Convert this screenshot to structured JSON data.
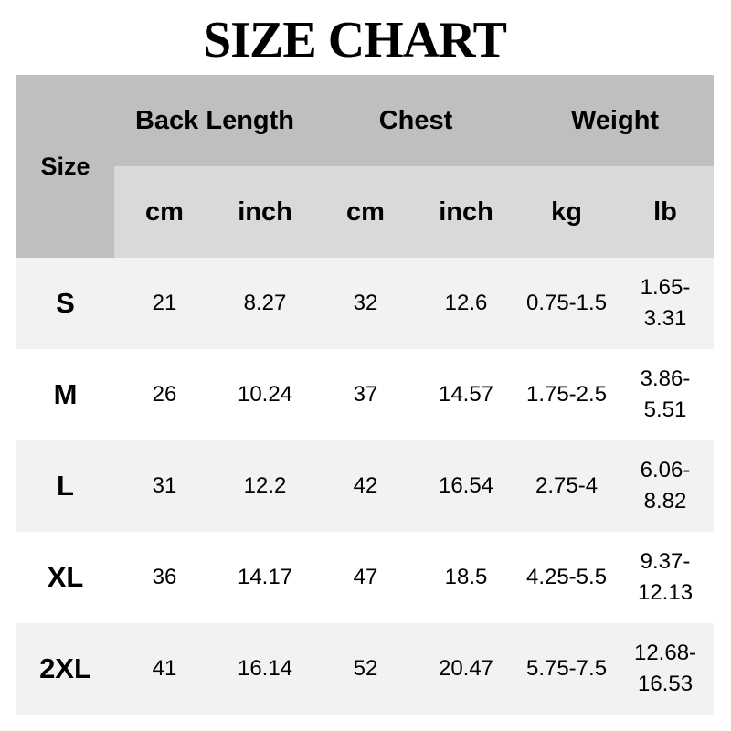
{
  "title": "SIZE CHART",
  "header": {
    "size": "Size",
    "groups": [
      "Back Length",
      "Chest",
      "Weight"
    ],
    "units": [
      "cm",
      "inch",
      "cm",
      "inch",
      "kg",
      "lb"
    ]
  },
  "rows": [
    {
      "size": "S",
      "cells": [
        "21",
        "8.27",
        "32",
        "12.6",
        "0.75-1.5",
        "1.65-",
        "3.31"
      ]
    },
    {
      "size": "M",
      "cells": [
        "26",
        "10.24",
        "37",
        "14.57",
        "1.75-2.5",
        "3.86-",
        "5.51"
      ]
    },
    {
      "size": "L",
      "cells": [
        "31",
        "12.2",
        "42",
        "16.54",
        "2.75-4",
        "6.06-",
        "8.82"
      ]
    },
    {
      "size": "XL",
      "cells": [
        "36",
        "14.17",
        "47",
        "18.5",
        "4.25-5.5",
        "9.37-",
        "12.13"
      ]
    },
    {
      "size": "2XL",
      "cells": [
        "41",
        "16.14",
        "52",
        "20.47",
        "5.75-7.5",
        "12.68-",
        "16.53"
      ]
    }
  ],
  "colors": {
    "header": "#bfbfbf",
    "subheader": "#d9d9d9",
    "stripe": "#f2f2f2"
  }
}
